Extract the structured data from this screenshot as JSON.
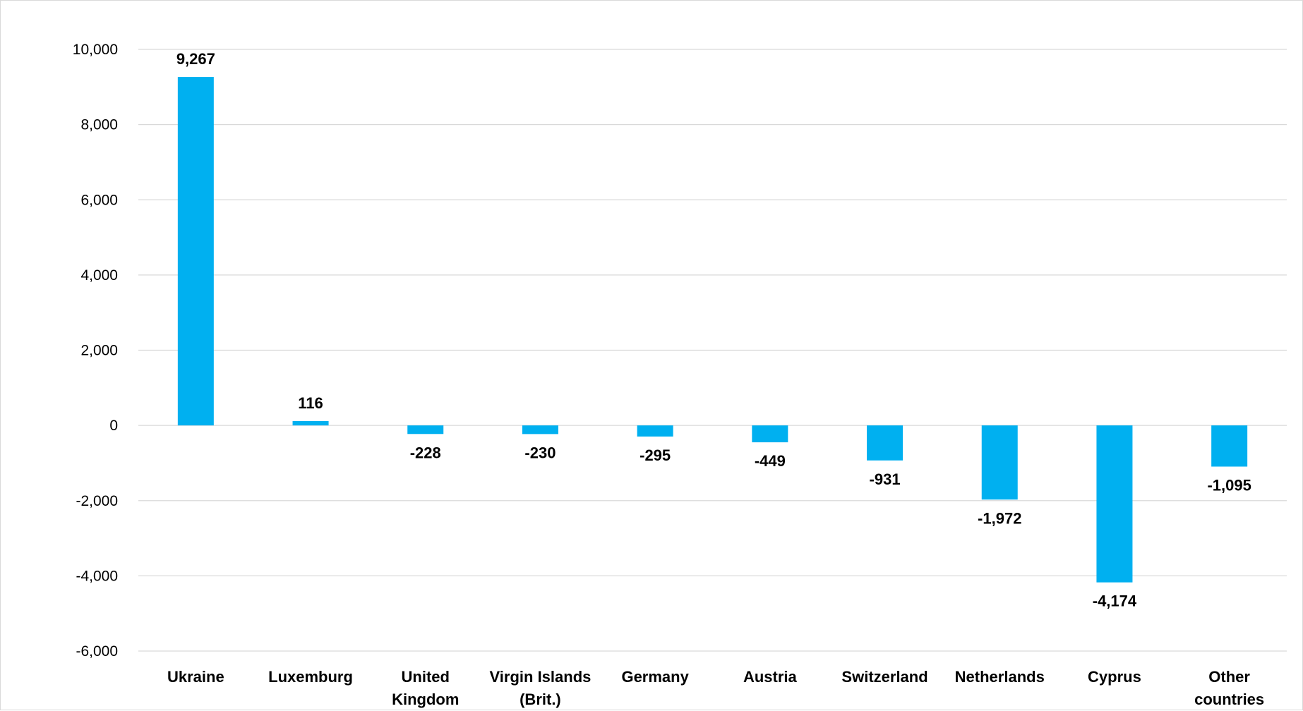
{
  "chart_data": {
    "type": "bar",
    "title": "",
    "xlabel": "",
    "ylabel": "",
    "categories": [
      [
        "Ukraine"
      ],
      [
        "Luxemburg"
      ],
      [
        "United",
        "Kingdom"
      ],
      [
        "Virgin Islands",
        "(Brit.)"
      ],
      [
        "Germany"
      ],
      [
        "Austria"
      ],
      [
        "Switzerland"
      ],
      [
        "Netherlands"
      ],
      [
        "Cyprus"
      ],
      [
        "Other",
        "countries"
      ]
    ],
    "values": [
      9267,
      116,
      -228,
      -230,
      -295,
      -449,
      -931,
      -1972,
      -4174,
      -1095
    ],
    "data_labels": [
      "9,267",
      "116",
      "-228",
      "-230",
      "-295",
      "-449",
      "-931",
      "-1,972",
      "-4,174",
      "-1,095"
    ],
    "ylim": [
      -6000,
      10000
    ],
    "yticks": [
      10000,
      8000,
      6000,
      4000,
      2000,
      0,
      -2000,
      -4000,
      -6000
    ],
    "ytick_labels": [
      "10,000",
      "8,000",
      "6,000",
      "4,000",
      "2,000",
      "0",
      "-2,000",
      "-4,000",
      "-6,000"
    ],
    "grid": true,
    "legend": "none",
    "bar_color": "#00b0f0",
    "grid_color": "#d9d9d9"
  }
}
